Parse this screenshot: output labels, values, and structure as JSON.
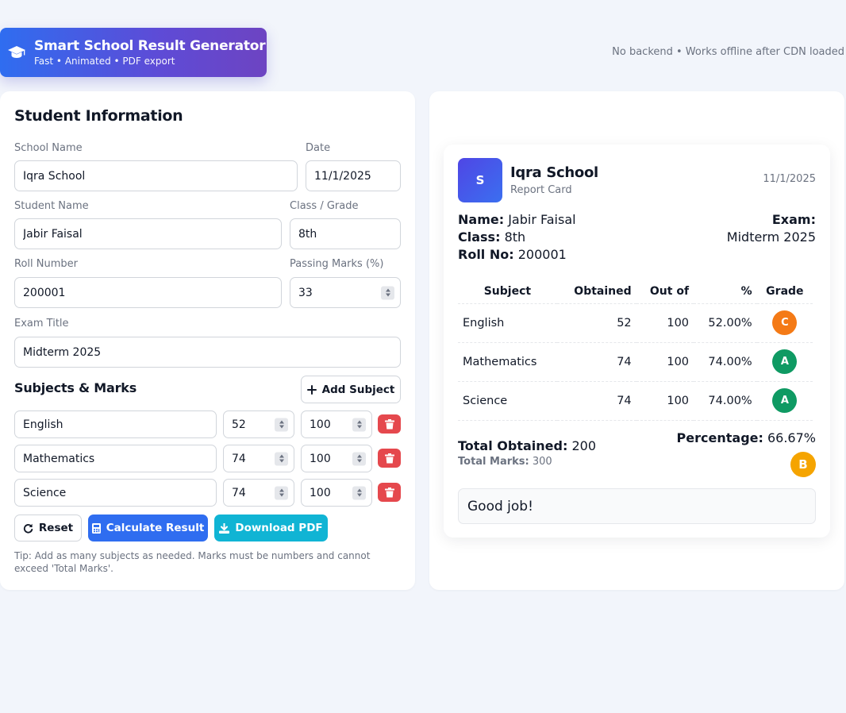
{
  "header": {
    "title": "Smart School Result Generator",
    "subtitle": "Fast • Animated • PDF export",
    "note": "No backend • Works offline after CDN loaded"
  },
  "form": {
    "heading": "Student Information",
    "school_label": "School Name",
    "school_value": "Iqra School",
    "date_label": "Date",
    "date_value": "11/1/2025",
    "student_label": "Student Name",
    "student_value": "Jabir Faisal",
    "class_label": "Class / Grade",
    "class_value": "8th",
    "roll_label": "Roll Number",
    "roll_value": "200001",
    "passing_label": "Passing Marks (%)",
    "passing_value": "33",
    "exam_label": "Exam Title",
    "exam_value": "Midterm 2025",
    "subjects_heading": "Subjects & Marks",
    "add_subject": "Add Subject",
    "subjects": [
      {
        "name": "English",
        "obtained": "52",
        "total": "100"
      },
      {
        "name": "Mathematics",
        "obtained": "74",
        "total": "100"
      },
      {
        "name": "Science",
        "obtained": "74",
        "total": "100"
      }
    ],
    "reset": "Reset",
    "calculate": "Calculate Result",
    "download": "Download PDF",
    "tip": "Tip: Add as many subjects as needed. Marks must be numbers and cannot exceed 'Total Marks'."
  },
  "report": {
    "logo_letter": "S",
    "school": "Iqra School",
    "type": "Report Card",
    "date": "11/1/2025",
    "name_label": "Name:",
    "name": "Jabir Faisal",
    "class_label": "Class:",
    "class": "8th",
    "roll_label": "Roll No:",
    "roll": "200001",
    "exam_label": "Exam:",
    "exam": "Midterm 2025",
    "columns": [
      "Subject",
      "Obtained",
      "Out of",
      "%",
      "Grade"
    ],
    "rows": [
      {
        "subject": "English",
        "obtained": "52",
        "outof": "100",
        "pct": "52.00%",
        "grade": "C",
        "color": "#f47a16"
      },
      {
        "subject": "Mathematics",
        "obtained": "74",
        "outof": "100",
        "pct": "74.00%",
        "grade": "A",
        "color": "#0f9a63"
      },
      {
        "subject": "Science",
        "obtained": "74",
        "outof": "100",
        "pct": "74.00%",
        "grade": "A",
        "color": "#0f9a63"
      }
    ],
    "total_obtained_label": "Total Obtained:",
    "total_obtained": "200",
    "total_marks_label": "Total Marks:",
    "total_marks": "300",
    "percentage_label": "Percentage:",
    "percentage": "66.67%",
    "overall_grade": "B",
    "remark": "Good job!"
  },
  "colors": {
    "primary": "#2f6df0",
    "cyan": "#10b4d4",
    "danger": "#e5484d",
    "grade_b": "#f5a400"
  }
}
